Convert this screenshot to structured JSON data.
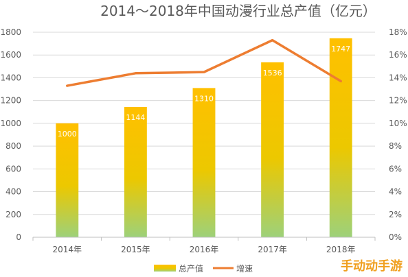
{
  "chart_data": {
    "type": "bar",
    "title": "2014～2018年中国动漫行业总产值（亿元）",
    "categories": [
      "2014年",
      "2015年",
      "2016年",
      "2017年",
      "2018年"
    ],
    "series": [
      {
        "name": "总产值",
        "kind": "bar",
        "axis": "left",
        "values": [
          1000,
          1144,
          1310,
          1536,
          1747
        ]
      },
      {
        "name": "增速",
        "kind": "line",
        "axis": "right",
        "values": [
          13.3,
          14.4,
          14.5,
          17.3,
          13.7
        ]
      }
    ],
    "ylim": [
      0,
      1800
    ],
    "yticks": [
      "0",
      "200",
      "400",
      "600",
      "800",
      "1000",
      "1200",
      "1400",
      "1600",
      "1800"
    ],
    "y2lim": [
      0,
      18
    ],
    "y2ticks": [
      "0%",
      "2%",
      "4%",
      "6%",
      "8%",
      "10%",
      "12%",
      "14%",
      "16%",
      "18%"
    ],
    "grid": true,
    "legend": "bottom",
    "colors": {
      "bar_top": "#ffc000",
      "bar_bottom": "#9dd17a",
      "line": "#ed7d31"
    }
  },
  "watermark": "手动动手游"
}
